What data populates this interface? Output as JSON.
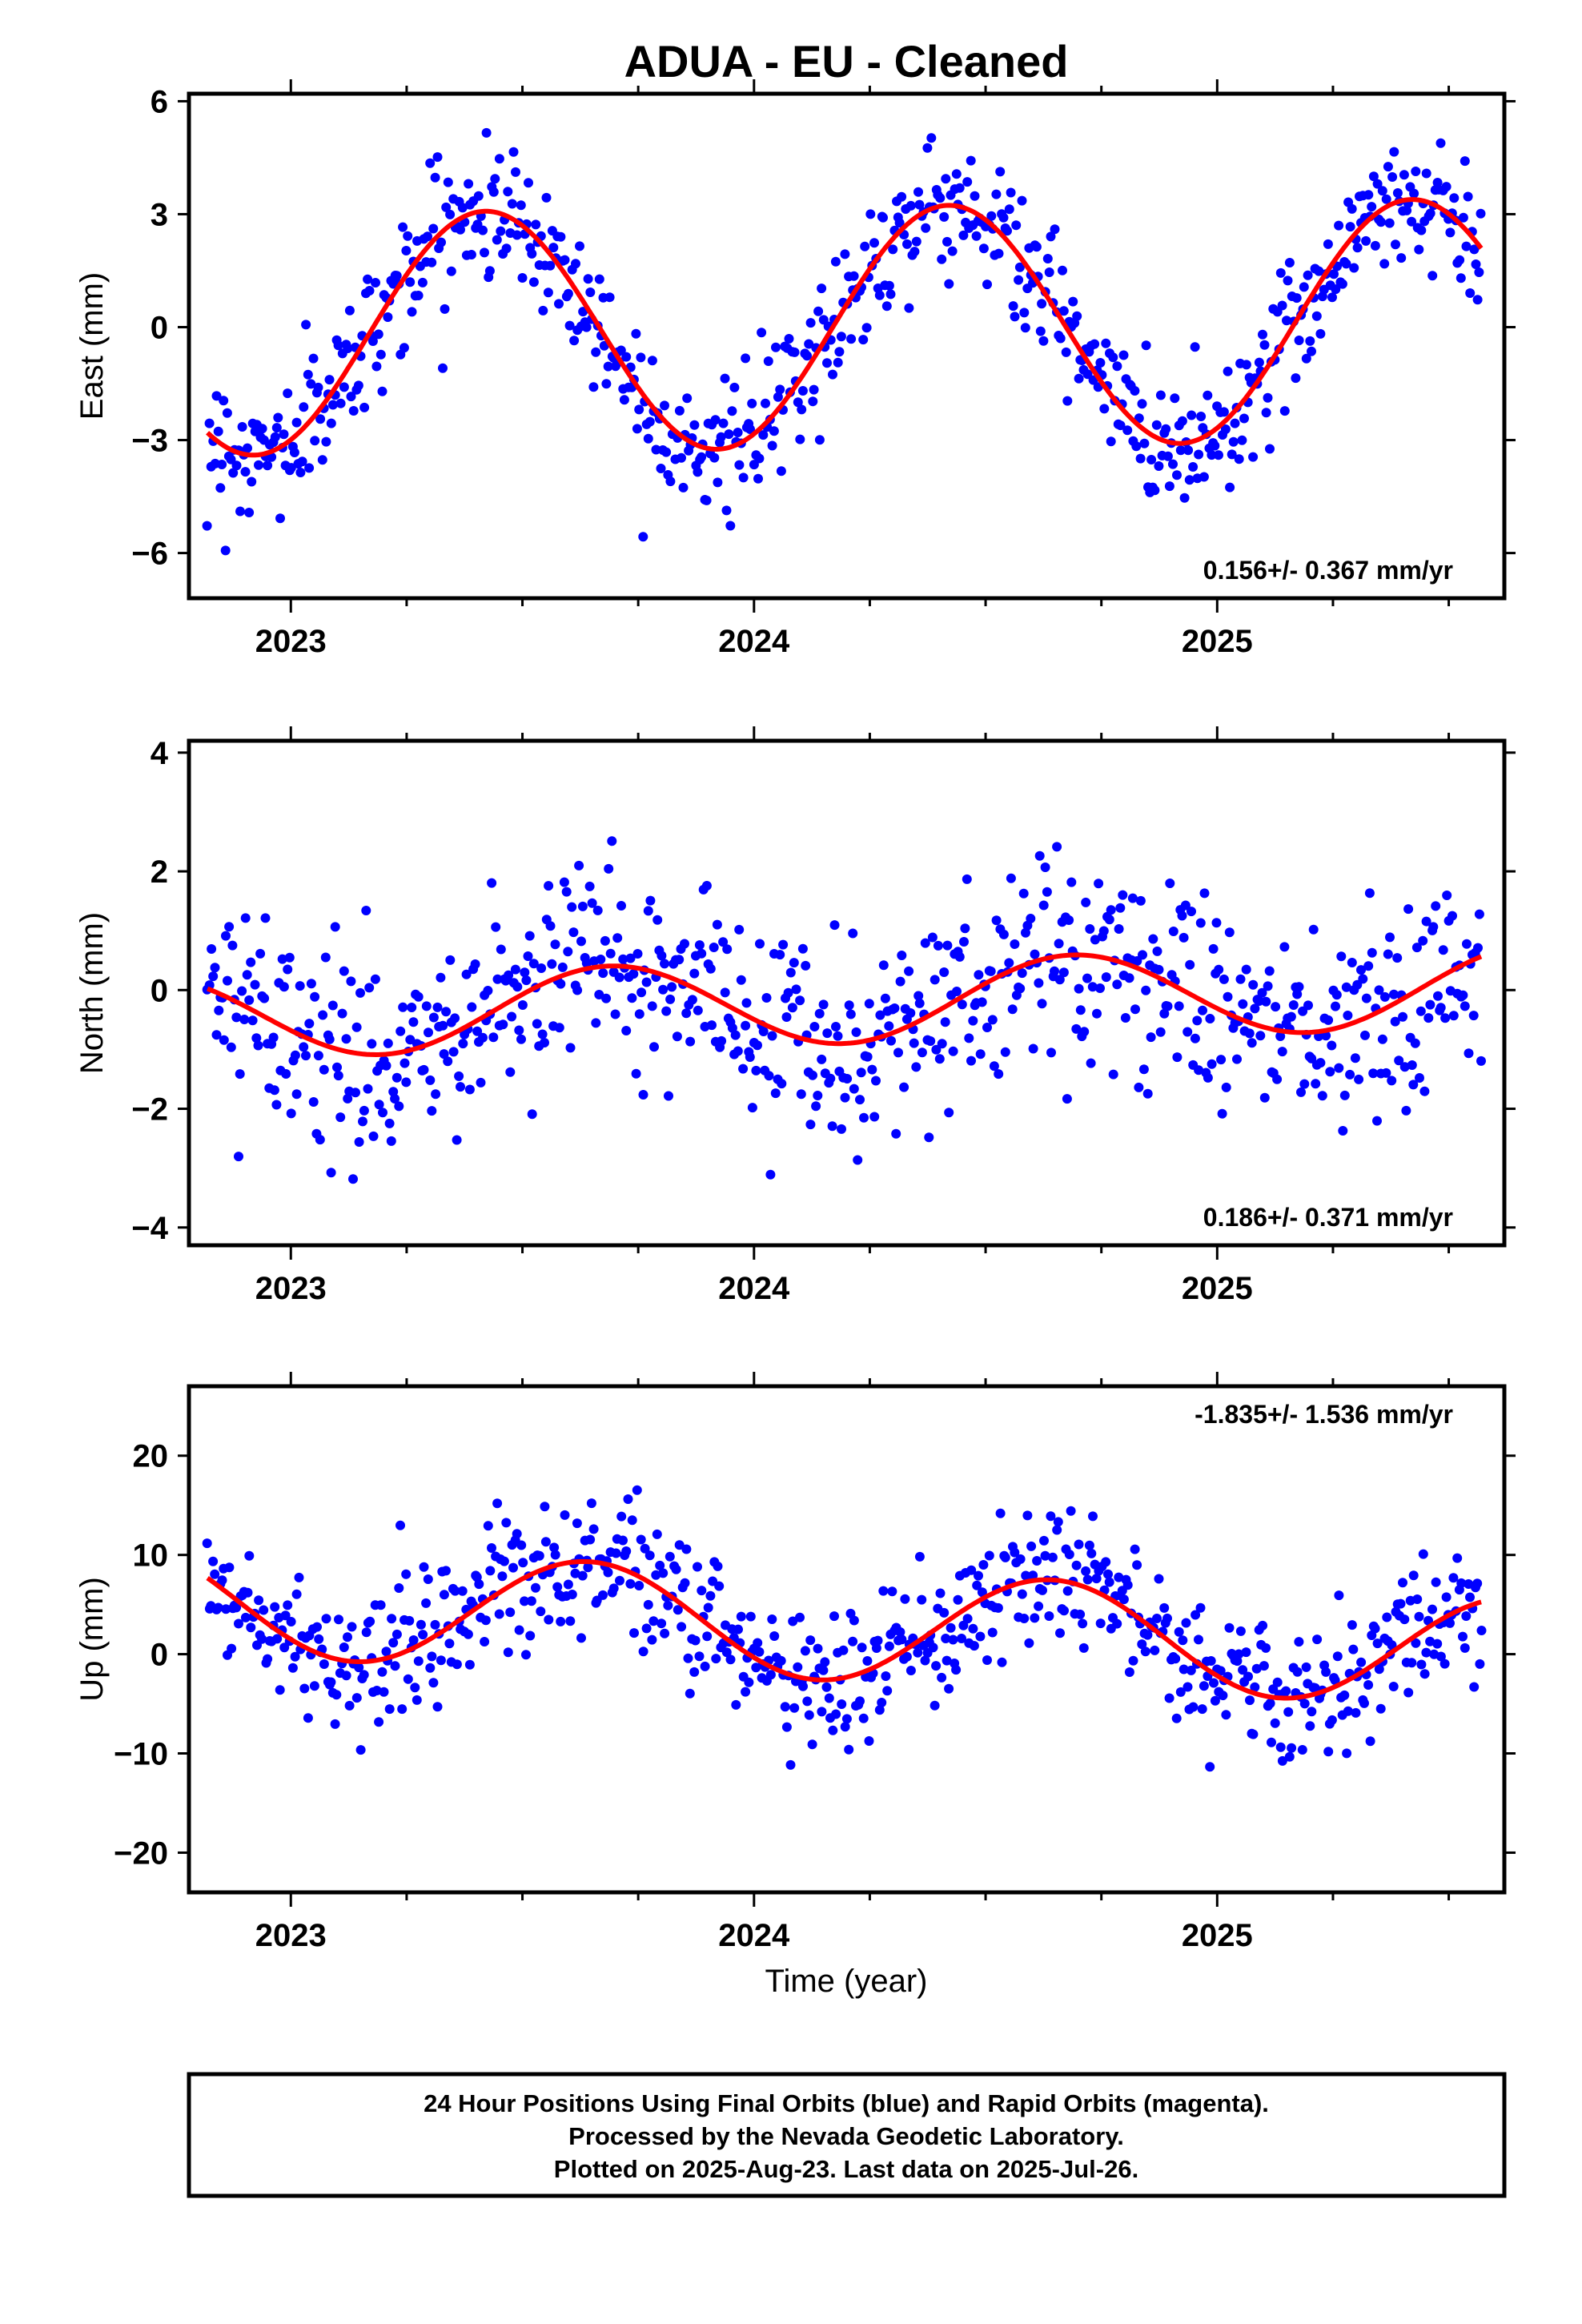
{
  "title": "ADUA  - EU - Cleaned",
  "xlabel": "Time (year)",
  "footer": [
    "24 Hour Positions Using Final Orbits (blue) and Rapid Orbits (magenta).",
    "Processed by the Nevada Geodetic Laboratory.",
    "Plotted on 2025-Aug-23. Last data on 2025-Jul-26."
  ],
  "colors": {
    "final_orbits": "#0000ff",
    "fit_line": "#ff0000",
    "frame": "#000000"
  },
  "chart_data": [
    {
      "type": "scatter",
      "component": "east",
      "ylabel": "East (mm)",
      "xlim": [
        2022.78,
        2025.62
      ],
      "ylim": [
        -7.2,
        6.2
      ],
      "yticks": [
        -6,
        -3,
        0,
        3,
        6
      ],
      "xticks": [
        2023,
        2024,
        2025
      ],
      "rate_label": "0.156+/- 0.367 mm/yr",
      "rate_position": "bottom-right",
      "grid": false,
      "series": [
        {
          "kind": "points",
          "x_start": 2022.82,
          "x_end": 2025.57,
          "count": 700,
          "scatter_sd": 0.9
        },
        {
          "kind": "fit",
          "offset": 0.0,
          "rate": 0.156,
          "amplitude": 3.2,
          "period": 1.0,
          "peak_at": 2023.42
        }
      ]
    },
    {
      "type": "scatter",
      "component": "north",
      "ylabel": "North (mm)",
      "xlim": [
        2022.78,
        2025.62
      ],
      "ylim": [
        -4.3,
        4.2
      ],
      "yticks": [
        -4,
        -2,
        0,
        2,
        4
      ],
      "xticks": [
        2023,
        2024,
        2025
      ],
      "rate_label": "0.186+/- 0.371 mm/yr",
      "rate_position": "bottom-right",
      "grid": false,
      "series": [
        {
          "kind": "points",
          "x_start": 2022.82,
          "x_end": 2025.57,
          "count": 700,
          "scatter_sd": 0.85
        },
        {
          "kind": "fit",
          "offset": -0.2,
          "rate": 0.186,
          "amplitude": 0.7,
          "period": 1.0,
          "peak_at": 2023.69
        }
      ]
    },
    {
      "type": "scatter",
      "component": "up",
      "ylabel": "Up (mm)",
      "xlim": [
        2022.78,
        2025.62
      ],
      "ylim": [
        -24,
        27
      ],
      "yticks": [
        -20,
        -10,
        0,
        10,
        20
      ],
      "xticks": [
        2023,
        2024,
        2025
      ],
      "rate_label": "-1.835+/- 1.536 mm/yr",
      "rate_position": "top-right",
      "grid": false,
      "series": [
        {
          "kind": "points",
          "x_start": 2022.82,
          "x_end": 2025.57,
          "count": 700,
          "scatter_sd": 3.5
        },
        {
          "kind": "fit",
          "offset": 2.8,
          "rate": -1.835,
          "amplitude": 5.5,
          "period": 1.0,
          "peak_at": 2023.64
        }
      ]
    }
  ]
}
